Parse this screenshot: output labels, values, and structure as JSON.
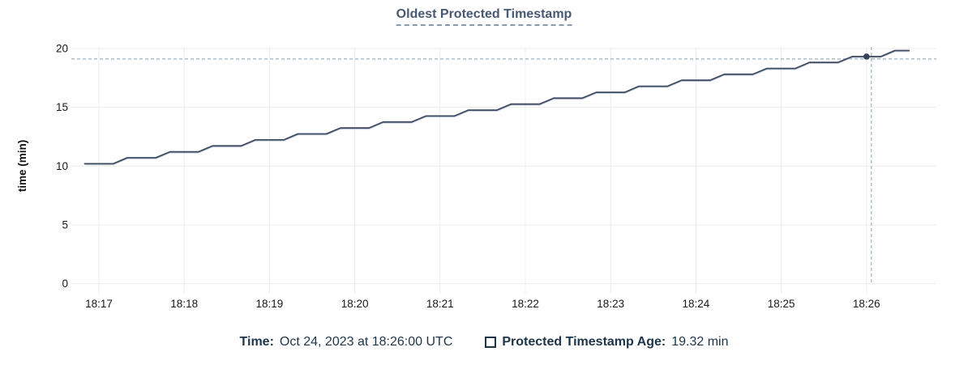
{
  "title": "Oldest Protected Timestamp",
  "footer": {
    "time_label": "Time:",
    "time_value": "Oct 24, 2023 at 18:26:00 UTC",
    "series_label": "Protected Timestamp Age:",
    "series_value": "19.32 min"
  },
  "colors": {
    "title": "#475872",
    "line": "#3e4a61",
    "line_shadow": "#b9c3d2",
    "grid": "#ececec",
    "crosshair": "#9fb0bb",
    "tick_text": "#16191d",
    "footer_text": "#1d3449",
    "hover_dot": "#36435c"
  },
  "chart_data": {
    "type": "line",
    "title": "Oldest Protected Timestamp",
    "xlabel": "",
    "ylabel": "time (min)",
    "ylim": [
      0,
      20
    ],
    "y_ticks": [
      0,
      5,
      10,
      15,
      20
    ],
    "x_ticks": [
      "18:17",
      "18:18",
      "18:19",
      "18:20",
      "18:21",
      "18:22",
      "18:23",
      "18:24",
      "18:25",
      "18:26"
    ],
    "grid": true,
    "legend_position": "bottom",
    "series": [
      {
        "name": "Protected Timestamp Age",
        "unit": "min",
        "x_unit": "minutes after 18:17:00",
        "points": [
          [
            -0.167,
            10.2
          ],
          [
            0,
            10.2
          ],
          [
            0.167,
            10.2
          ],
          [
            0.333,
            10.71
          ],
          [
            0.5,
            10.71
          ],
          [
            0.667,
            10.71
          ],
          [
            0.833,
            11.21
          ],
          [
            1,
            11.21
          ],
          [
            1.167,
            11.21
          ],
          [
            1.333,
            11.72
          ],
          [
            1.5,
            11.72
          ],
          [
            1.667,
            11.72
          ],
          [
            1.833,
            12.23
          ],
          [
            2,
            12.23
          ],
          [
            2.167,
            12.23
          ],
          [
            2.333,
            12.74
          ],
          [
            2.5,
            12.74
          ],
          [
            2.667,
            12.74
          ],
          [
            2.833,
            13.24
          ],
          [
            3,
            13.24
          ],
          [
            3.167,
            13.24
          ],
          [
            3.333,
            13.75
          ],
          [
            3.5,
            13.75
          ],
          [
            3.667,
            13.75
          ],
          [
            3.833,
            14.26
          ],
          [
            4,
            14.26
          ],
          [
            4.167,
            14.26
          ],
          [
            4.333,
            14.76
          ],
          [
            4.5,
            14.76
          ],
          [
            4.667,
            14.76
          ],
          [
            4.833,
            15.27
          ],
          [
            5,
            15.27
          ],
          [
            5.167,
            15.27
          ],
          [
            5.333,
            15.78
          ],
          [
            5.5,
            15.78
          ],
          [
            5.667,
            15.78
          ],
          [
            5.833,
            16.28
          ],
          [
            6,
            16.28
          ],
          [
            6.167,
            16.28
          ],
          [
            6.333,
            16.79
          ],
          [
            6.5,
            16.79
          ],
          [
            6.667,
            16.79
          ],
          [
            6.833,
            17.3
          ],
          [
            7,
            17.3
          ],
          [
            7.167,
            17.3
          ],
          [
            7.333,
            17.81
          ],
          [
            7.5,
            17.81
          ],
          [
            7.667,
            17.81
          ],
          [
            7.833,
            18.31
          ],
          [
            8,
            18.31
          ],
          [
            8.167,
            18.31
          ],
          [
            8.333,
            18.82
          ],
          [
            8.5,
            18.82
          ],
          [
            8.667,
            18.82
          ],
          [
            8.833,
            19.32
          ],
          [
            9,
            19.32
          ],
          [
            9.167,
            19.32
          ],
          [
            9.333,
            19.83
          ],
          [
            9.5,
            19.83
          ]
        ]
      }
    ],
    "hover": {
      "t": 9,
      "x_label": "18:26:00",
      "value": 19.32
    }
  }
}
